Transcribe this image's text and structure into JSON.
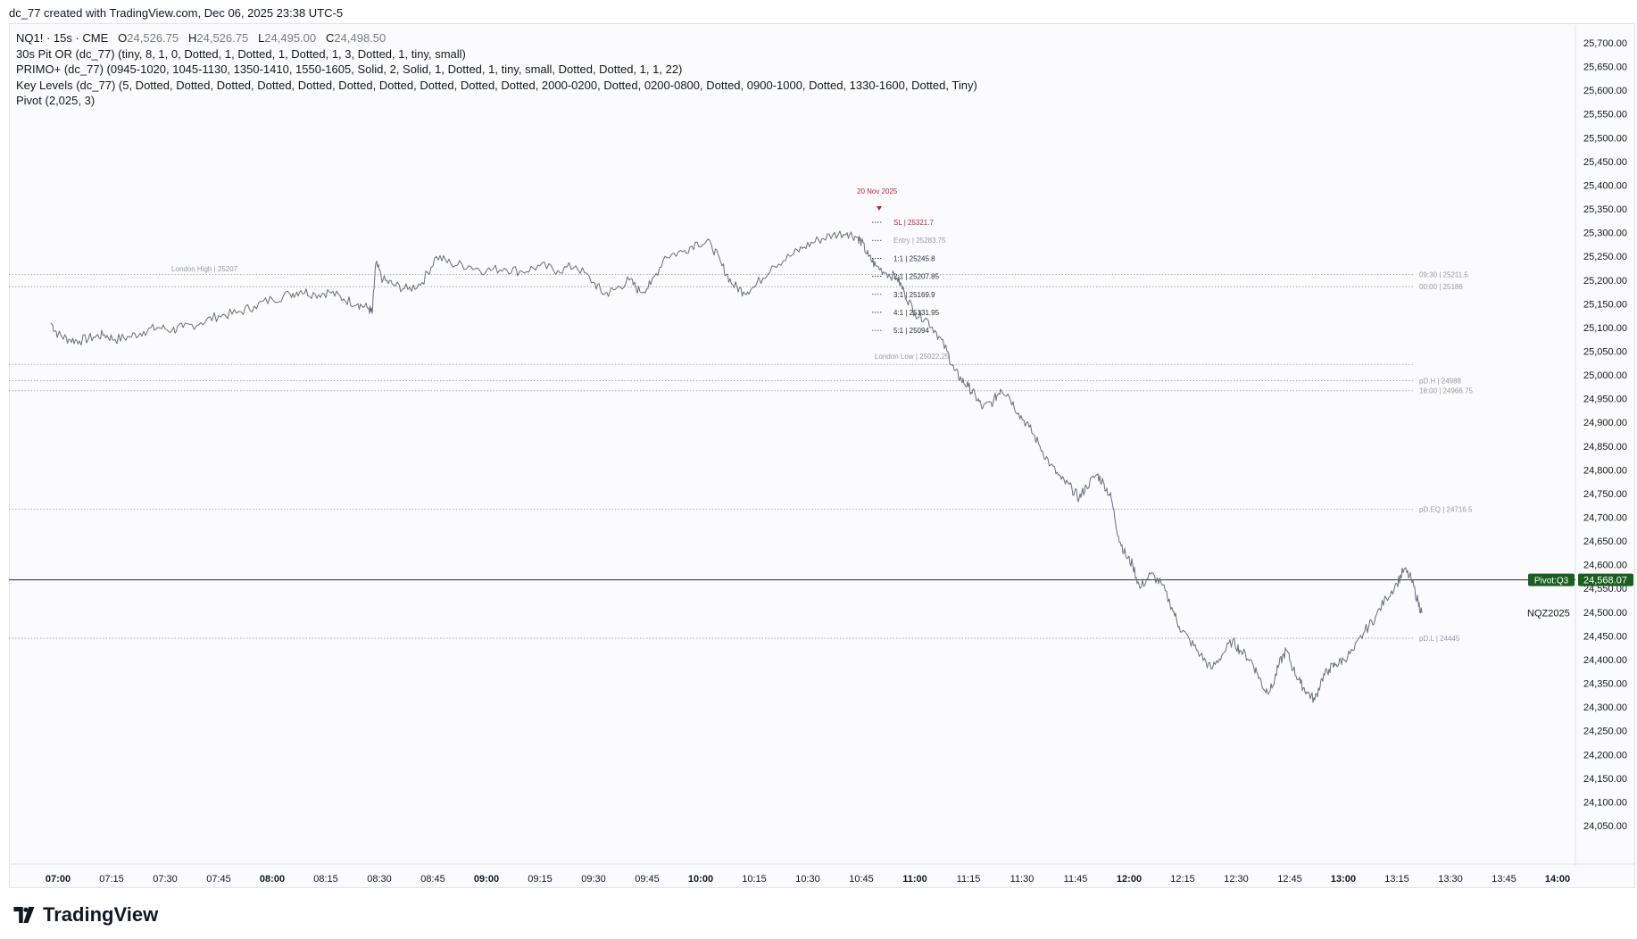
{
  "header": {
    "text": "dc_77 created with TradingView.com, Dec 06, 2025 23:38 UTC-5"
  },
  "legend": {
    "symbol": "NQ1! · 15s · CME",
    "ohlc": [
      {
        "k": "O",
        "v": "24,526.75"
      },
      {
        "k": "H",
        "v": "24,526.75"
      },
      {
        "k": "L",
        "v": "24,495.00"
      },
      {
        "k": "C",
        "v": "24,498.50"
      }
    ],
    "indicators": [
      "30s Pit OR (dc_77) (tiny, 8, 1, 0, Dotted, 1, Dotted, 1, Dotted, 1, 3, Dotted, 1, tiny, small)",
      "PRIMO+ (dc_77) (0945-1020, 1045-1130, 1350-1410, 1550-1605, Solid, 2, Solid, 1, Dotted, 1, tiny, small, Dotted, Dotted, 1, 1, 22)",
      "Key Levels (dc_77) (5, Dotted, Dotted, Dotted, Dotted, Dotted, Dotted, Dotted, Dotted, Dotted, Dotted, 2000-0200, Dotted, 0200-0800, Dotted, 0900-1000, Dotted, 1330-1600, Dotted, Tiny)",
      "Pivot (2,025, 3)"
    ]
  },
  "brand": {
    "name": "TradingView"
  },
  "chart_data": {
    "type": "line",
    "x_axis": {
      "ticks": [
        {
          "label": "07:00",
          "t": 420,
          "bold": true
        },
        {
          "label": "07:15",
          "t": 435,
          "bold": false
        },
        {
          "label": "07:30",
          "t": 450,
          "bold": false
        },
        {
          "label": "07:45",
          "t": 465,
          "bold": false
        },
        {
          "label": "08:00",
          "t": 480,
          "bold": true
        },
        {
          "label": "08:15",
          "t": 495,
          "bold": false
        },
        {
          "label": "08:30",
          "t": 510,
          "bold": false
        },
        {
          "label": "08:45",
          "t": 525,
          "bold": false
        },
        {
          "label": "09:00",
          "t": 540,
          "bold": true
        },
        {
          "label": "09:15",
          "t": 555,
          "bold": false
        },
        {
          "label": "09:30",
          "t": 570,
          "bold": false
        },
        {
          "label": "09:45",
          "t": 585,
          "bold": false
        },
        {
          "label": "10:00",
          "t": 600,
          "bold": true
        },
        {
          "label": "10:15",
          "t": 615,
          "bold": false
        },
        {
          "label": "10:30",
          "t": 630,
          "bold": false
        },
        {
          "label": "10:45",
          "t": 645,
          "bold": false
        },
        {
          "label": "11:00",
          "t": 660,
          "bold": true
        },
        {
          "label": "11:15",
          "t": 675,
          "bold": false
        },
        {
          "label": "11:30",
          "t": 690,
          "bold": false
        },
        {
          "label": "11:45",
          "t": 705,
          "bold": false
        },
        {
          "label": "12:00",
          "t": 720,
          "bold": true
        },
        {
          "label": "12:15",
          "t": 735,
          "bold": false
        },
        {
          "label": "12:30",
          "t": 750,
          "bold": false
        },
        {
          "label": "12:45",
          "t": 765,
          "bold": false
        },
        {
          "label": "13:00",
          "t": 780,
          "bold": true
        },
        {
          "label": "13:15",
          "t": 795,
          "bold": false
        },
        {
          "label": "13:30",
          "t": 810,
          "bold": false
        },
        {
          "label": "13:45",
          "t": 825,
          "bold": false
        },
        {
          "label": "14:00",
          "t": 840,
          "bold": true
        }
      ]
    },
    "y_axis": {
      "ticks": [
        "25,700.00",
        "25,650.00",
        "25,600.00",
        "25,550.00",
        "25,500.00",
        "25,450.00",
        "25,400.00",
        "25,350.00",
        "25,300.00",
        "25,250.00",
        "25,200.00",
        "25,150.00",
        "25,100.00",
        "25,050.00",
        "25,000.00",
        "24,950.00",
        "24,900.00",
        "24,850.00",
        "24,800.00",
        "24,750.00",
        "24,700.00",
        "24,650.00",
        "24,600.00",
        "24,550.00",
        "24,500.00",
        "24,450.00",
        "24,400.00",
        "24,350.00",
        "24,300.00",
        "24,250.00",
        "24,200.00",
        "24,150.00",
        "24,100.00",
        "24,050.00"
      ],
      "tick_values": [
        25700,
        25650,
        25600,
        25550,
        25500,
        25450,
        25400,
        25350,
        25300,
        25250,
        25200,
        25150,
        25100,
        25050,
        25000,
        24950,
        24900,
        24850,
        24800,
        24750,
        24700,
        24650,
        24600,
        24550,
        24500,
        24450,
        24400,
        24350,
        24300,
        24250,
        24200,
        24150,
        24100,
        24050
      ]
    },
    "series": [
      {
        "name": "NQZ2025",
        "points": [
          [
            418,
            25110
          ],
          [
            420,
            25085
          ],
          [
            423,
            25075
          ],
          [
            426,
            25072
          ],
          [
            430,
            25080
          ],
          [
            433,
            25085
          ],
          [
            436,
            25075
          ],
          [
            440,
            25080
          ],
          [
            444,
            25092
          ],
          [
            448,
            25100
          ],
          [
            452,
            25095
          ],
          [
            455,
            25100
          ],
          [
            460,
            25110
          ],
          [
            465,
            25125
          ],
          [
            470,
            25130
          ],
          [
            475,
            25145
          ],
          [
            480,
            25160
          ],
          [
            485,
            25170
          ],
          [
            488,
            25178
          ],
          [
            492,
            25170
          ],
          [
            496,
            25175
          ],
          [
            500,
            25160
          ],
          [
            504,
            25150
          ],
          [
            507,
            25140
          ],
          [
            508,
            25130
          ],
          [
            509,
            25235
          ],
          [
            511,
            25200
          ],
          [
            514,
            25190
          ],
          [
            518,
            25180
          ],
          [
            522,
            25195
          ],
          [
            526,
            25250
          ],
          [
            530,
            25235
          ],
          [
            535,
            25230
          ],
          [
            540,
            25220
          ],
          [
            545,
            25225
          ],
          [
            550,
            25218
          ],
          [
            555,
            25230
          ],
          [
            560,
            25220
          ],
          [
            565,
            25230
          ],
          [
            570,
            25195
          ],
          [
            573,
            25170
          ],
          [
            576,
            25180
          ],
          [
            580,
            25200
          ],
          [
            583,
            25175
          ],
          [
            586,
            25190
          ],
          [
            590,
            25250
          ],
          [
            595,
            25260
          ],
          [
            599,
            25280
          ],
          [
            603,
            25275
          ],
          [
            606,
            25230
          ],
          [
            609,
            25190
          ],
          [
            612,
            25175
          ],
          [
            615,
            25185
          ],
          [
            620,
            25230
          ],
          [
            625,
            25250
          ],
          [
            629,
            25270
          ],
          [
            633,
            25285
          ],
          [
            637,
            25295
          ],
          [
            641,
            25300
          ],
          [
            644,
            25290
          ],
          [
            645,
            25280
          ],
          [
            647,
            25250
          ],
          [
            649,
            25230
          ],
          [
            652,
            25215
          ],
          [
            655,
            25205
          ],
          [
            657,
            25175
          ],
          [
            660,
            25130
          ],
          [
            663,
            25120
          ],
          [
            666,
            25090
          ],
          [
            669,
            25050
          ],
          [
            671,
            25010
          ],
          [
            673,
            24990
          ],
          [
            675,
            24975
          ],
          [
            677,
            24955
          ],
          [
            679,
            24930
          ],
          [
            682,
            24945
          ],
          [
            684,
            24970
          ],
          [
            686,
            24960
          ],
          [
            689,
            24920
          ],
          [
            692,
            24890
          ],
          [
            695,
            24850
          ],
          [
            698,
            24810
          ],
          [
            701,
            24780
          ],
          [
            704,
            24760
          ],
          [
            706,
            24740
          ],
          [
            708,
            24765
          ],
          [
            711,
            24790
          ],
          [
            713,
            24770
          ],
          [
            715,
            24740
          ],
          [
            717,
            24660
          ],
          [
            719,
            24620
          ],
          [
            721,
            24600
          ],
          [
            723,
            24550
          ],
          [
            726,
            24580
          ],
          [
            729,
            24560
          ],
          [
            732,
            24510
          ],
          [
            734,
            24470
          ],
          [
            737,
            24440
          ],
          [
            740,
            24410
          ],
          [
            743,
            24380
          ],
          [
            746,
            24410
          ],
          [
            749,
            24440
          ],
          [
            751,
            24420
          ],
          [
            754,
            24400
          ],
          [
            756,
            24370
          ],
          [
            758,
            24335
          ],
          [
            760,
            24340
          ],
          [
            762,
            24390
          ],
          [
            764,
            24420
          ],
          [
            766,
            24380
          ],
          [
            768,
            24350
          ],
          [
            770,
            24330
          ],
          [
            772,
            24315
          ],
          [
            774,
            24360
          ],
          [
            776,
            24380
          ],
          [
            778,
            24390
          ],
          [
            780,
            24400
          ],
          [
            783,
            24420
          ],
          [
            786,
            24460
          ],
          [
            789,
            24490
          ],
          [
            792,
            24530
          ],
          [
            795,
            24560
          ],
          [
            797,
            24590
          ],
          [
            799,
            24570
          ],
          [
            801,
            24520
          ],
          [
            802,
            24498
          ]
        ]
      }
    ],
    "levels": [
      {
        "label": "09:30 | 25211.5",
        "value": 25211.5,
        "style": "dotted"
      },
      {
        "label": "00:00 | 25186",
        "value": 25186,
        "style": "dotted"
      },
      {
        "label": "pD.H | 24988",
        "value": 24988,
        "style": "dotted"
      },
      {
        "label": "18:00 | 24966.75",
        "value": 24966.75,
        "style": "dotted"
      },
      {
        "label": "pD.EQ | 24716.5",
        "value": 24716.5,
        "style": "dotted"
      },
      {
        "label": "pD.L | 24445",
        "value": 24445,
        "style": "dotted"
      },
      {
        "label": "",
        "value": 25022.25,
        "style": "dotted"
      }
    ],
    "session_labels": [
      {
        "label": "London High | 25207",
        "value": 25207,
        "t": 463
      },
      {
        "label": "London Low | 25022.25",
        "value": 25022.25,
        "t": 660
      }
    ],
    "trade_marker": {
      "date_label": "20 Nov 2025",
      "t": 650,
      "levels": [
        {
          "label": "SL | 25321.7",
          "value": 25321.7,
          "kind": "sl"
        },
        {
          "label": "Entry | 25283.75",
          "value": 25283.75,
          "kind": "entry"
        },
        {
          "label": "1:1 | 25245.8",
          "value": 25245.8,
          "kind": "tp"
        },
        {
          "label": "2:1 | 25207.85",
          "value": 25207.85,
          "kind": "tp"
        },
        {
          "label": "3:1 | 25169.9",
          "value": 25169.9,
          "kind": "tp"
        },
        {
          "label": "4:1 | 25131.95",
          "value": 25131.95,
          "kind": "tp"
        },
        {
          "label": "5:1 | 25094",
          "value": 25094,
          "kind": "tp"
        }
      ]
    },
    "pivot": {
      "label": "Pivot:Q3",
      "value_text": "24,568.07",
      "value": 24568.07
    },
    "last_price": {
      "label": "NQZ2025",
      "value": 24498.5
    },
    "colors": {
      "price_line": "#6a6d78",
      "level_line": "#9598a1",
      "pivot_line": "#2a2e39",
      "pivot_badge": "#1b5e20",
      "sl_text": "#b22833",
      "entry_text": "#9598a1",
      "tp_text": "#2a2e39"
    },
    "grid": false
  }
}
